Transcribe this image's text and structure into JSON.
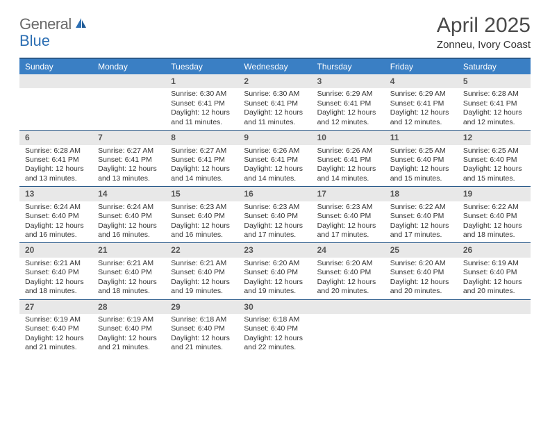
{
  "logo": {
    "general": "General",
    "blue": "Blue"
  },
  "title": "April 2025",
  "subtitle": "Zonneu, Ivory Coast",
  "colors": {
    "header_bg": "#3a7fc4",
    "header_border": "#2a5a8a",
    "week_border": "#2a5a8a",
    "daynum_bg": "#e8e8e8",
    "text": "#333333",
    "title_text": "#4a4a4a",
    "logo_gray": "#6a6a6a",
    "logo_blue": "#2d6fb3"
  },
  "weekdays": [
    "Sunday",
    "Monday",
    "Tuesday",
    "Wednesday",
    "Thursday",
    "Friday",
    "Saturday"
  ],
  "weeks": [
    [
      {
        "day": "",
        "sunrise": "",
        "sunset": "",
        "daylight": ""
      },
      {
        "day": "",
        "sunrise": "",
        "sunset": "",
        "daylight": ""
      },
      {
        "day": "1",
        "sunrise": "Sunrise: 6:30 AM",
        "sunset": "Sunset: 6:41 PM",
        "daylight": "Daylight: 12 hours and 11 minutes."
      },
      {
        "day": "2",
        "sunrise": "Sunrise: 6:30 AM",
        "sunset": "Sunset: 6:41 PM",
        "daylight": "Daylight: 12 hours and 11 minutes."
      },
      {
        "day": "3",
        "sunrise": "Sunrise: 6:29 AM",
        "sunset": "Sunset: 6:41 PM",
        "daylight": "Daylight: 12 hours and 12 minutes."
      },
      {
        "day": "4",
        "sunrise": "Sunrise: 6:29 AM",
        "sunset": "Sunset: 6:41 PM",
        "daylight": "Daylight: 12 hours and 12 minutes."
      },
      {
        "day": "5",
        "sunrise": "Sunrise: 6:28 AM",
        "sunset": "Sunset: 6:41 PM",
        "daylight": "Daylight: 12 hours and 12 minutes."
      }
    ],
    [
      {
        "day": "6",
        "sunrise": "Sunrise: 6:28 AM",
        "sunset": "Sunset: 6:41 PM",
        "daylight": "Daylight: 12 hours and 13 minutes."
      },
      {
        "day": "7",
        "sunrise": "Sunrise: 6:27 AM",
        "sunset": "Sunset: 6:41 PM",
        "daylight": "Daylight: 12 hours and 13 minutes."
      },
      {
        "day": "8",
        "sunrise": "Sunrise: 6:27 AM",
        "sunset": "Sunset: 6:41 PM",
        "daylight": "Daylight: 12 hours and 14 minutes."
      },
      {
        "day": "9",
        "sunrise": "Sunrise: 6:26 AM",
        "sunset": "Sunset: 6:41 PM",
        "daylight": "Daylight: 12 hours and 14 minutes."
      },
      {
        "day": "10",
        "sunrise": "Sunrise: 6:26 AM",
        "sunset": "Sunset: 6:41 PM",
        "daylight": "Daylight: 12 hours and 14 minutes."
      },
      {
        "day": "11",
        "sunrise": "Sunrise: 6:25 AM",
        "sunset": "Sunset: 6:40 PM",
        "daylight": "Daylight: 12 hours and 15 minutes."
      },
      {
        "day": "12",
        "sunrise": "Sunrise: 6:25 AM",
        "sunset": "Sunset: 6:40 PM",
        "daylight": "Daylight: 12 hours and 15 minutes."
      }
    ],
    [
      {
        "day": "13",
        "sunrise": "Sunrise: 6:24 AM",
        "sunset": "Sunset: 6:40 PM",
        "daylight": "Daylight: 12 hours and 16 minutes."
      },
      {
        "day": "14",
        "sunrise": "Sunrise: 6:24 AM",
        "sunset": "Sunset: 6:40 PM",
        "daylight": "Daylight: 12 hours and 16 minutes."
      },
      {
        "day": "15",
        "sunrise": "Sunrise: 6:23 AM",
        "sunset": "Sunset: 6:40 PM",
        "daylight": "Daylight: 12 hours and 16 minutes."
      },
      {
        "day": "16",
        "sunrise": "Sunrise: 6:23 AM",
        "sunset": "Sunset: 6:40 PM",
        "daylight": "Daylight: 12 hours and 17 minutes."
      },
      {
        "day": "17",
        "sunrise": "Sunrise: 6:23 AM",
        "sunset": "Sunset: 6:40 PM",
        "daylight": "Daylight: 12 hours and 17 minutes."
      },
      {
        "day": "18",
        "sunrise": "Sunrise: 6:22 AM",
        "sunset": "Sunset: 6:40 PM",
        "daylight": "Daylight: 12 hours and 17 minutes."
      },
      {
        "day": "19",
        "sunrise": "Sunrise: 6:22 AM",
        "sunset": "Sunset: 6:40 PM",
        "daylight": "Daylight: 12 hours and 18 minutes."
      }
    ],
    [
      {
        "day": "20",
        "sunrise": "Sunrise: 6:21 AM",
        "sunset": "Sunset: 6:40 PM",
        "daylight": "Daylight: 12 hours and 18 minutes."
      },
      {
        "day": "21",
        "sunrise": "Sunrise: 6:21 AM",
        "sunset": "Sunset: 6:40 PM",
        "daylight": "Daylight: 12 hours and 18 minutes."
      },
      {
        "day": "22",
        "sunrise": "Sunrise: 6:21 AM",
        "sunset": "Sunset: 6:40 PM",
        "daylight": "Daylight: 12 hours and 19 minutes."
      },
      {
        "day": "23",
        "sunrise": "Sunrise: 6:20 AM",
        "sunset": "Sunset: 6:40 PM",
        "daylight": "Daylight: 12 hours and 19 minutes."
      },
      {
        "day": "24",
        "sunrise": "Sunrise: 6:20 AM",
        "sunset": "Sunset: 6:40 PM",
        "daylight": "Daylight: 12 hours and 20 minutes."
      },
      {
        "day": "25",
        "sunrise": "Sunrise: 6:20 AM",
        "sunset": "Sunset: 6:40 PM",
        "daylight": "Daylight: 12 hours and 20 minutes."
      },
      {
        "day": "26",
        "sunrise": "Sunrise: 6:19 AM",
        "sunset": "Sunset: 6:40 PM",
        "daylight": "Daylight: 12 hours and 20 minutes."
      }
    ],
    [
      {
        "day": "27",
        "sunrise": "Sunrise: 6:19 AM",
        "sunset": "Sunset: 6:40 PM",
        "daylight": "Daylight: 12 hours and 21 minutes."
      },
      {
        "day": "28",
        "sunrise": "Sunrise: 6:19 AM",
        "sunset": "Sunset: 6:40 PM",
        "daylight": "Daylight: 12 hours and 21 minutes."
      },
      {
        "day": "29",
        "sunrise": "Sunrise: 6:18 AM",
        "sunset": "Sunset: 6:40 PM",
        "daylight": "Daylight: 12 hours and 21 minutes."
      },
      {
        "day": "30",
        "sunrise": "Sunrise: 6:18 AM",
        "sunset": "Sunset: 6:40 PM",
        "daylight": "Daylight: 12 hours and 22 minutes."
      },
      {
        "day": "",
        "sunrise": "",
        "sunset": "",
        "daylight": ""
      },
      {
        "day": "",
        "sunrise": "",
        "sunset": "",
        "daylight": ""
      },
      {
        "day": "",
        "sunrise": "",
        "sunset": "",
        "daylight": ""
      }
    ]
  ]
}
